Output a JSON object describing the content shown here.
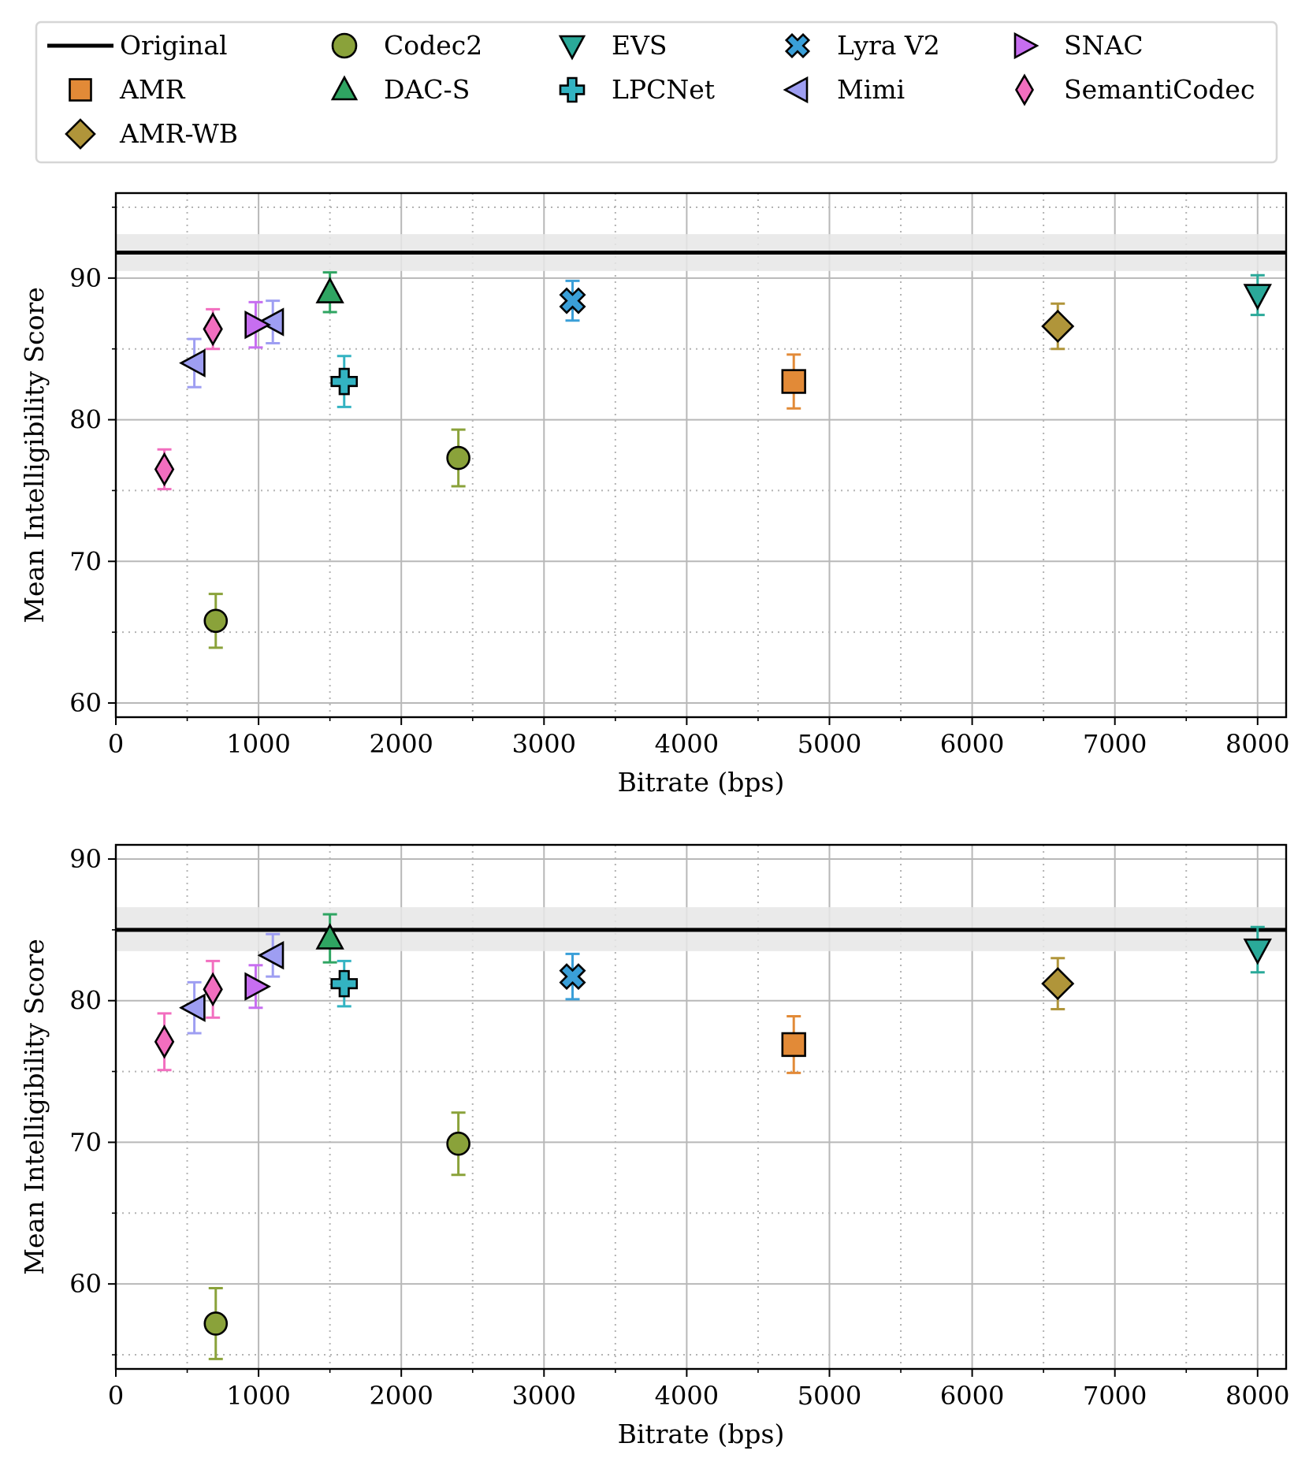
{
  "legend": {
    "entries": [
      {
        "label": "Original",
        "marker": "line",
        "color": "#000000"
      },
      {
        "label": "Codec2",
        "marker": "circle",
        "color": "#8aa23a"
      },
      {
        "label": "EVS",
        "marker": "triangle-down",
        "color": "#2aa999"
      },
      {
        "label": "Lyra V2",
        "marker": "x",
        "color": "#3a9fd8"
      },
      {
        "label": "SNAC",
        "marker": "triangle-right",
        "color": "#c76ef0"
      },
      {
        "label": "AMR",
        "marker": "square",
        "color": "#e28a37"
      },
      {
        "label": "DAC-S",
        "marker": "triangle-up",
        "color": "#2fa562"
      },
      {
        "label": "LPCNet",
        "marker": "plus",
        "color": "#33b3c2"
      },
      {
        "label": "Mimi",
        "marker": "triangle-left",
        "color": "#9e9ef2"
      },
      {
        "label": "SemantiCodec",
        "marker": "thin-diamond",
        "color": "#f26ebf"
      },
      {
        "label": "AMR-WB",
        "marker": "diamond",
        "color": "#b0953a"
      }
    ]
  },
  "chart_data": [
    {
      "type": "scatter",
      "title": "",
      "xlabel": "Bitrate (bps)",
      "ylabel": "Mean Intelligibility Score",
      "xlim": [
        0,
        8200
      ],
      "ylim": [
        59,
        96
      ],
      "xticks": [
        0,
        1000,
        2000,
        3000,
        4000,
        5000,
        6000,
        7000,
        8000
      ],
      "yticks": [
        60,
        70,
        80,
        90
      ],
      "grid": true,
      "reference": {
        "name": "Original",
        "value": 91.8,
        "band": [
          90.5,
          93.1
        ]
      },
      "series": [
        {
          "name": "SemantiCodec",
          "points": [
            {
              "x": 340,
              "y": 76.5,
              "err": 1.4
            },
            {
              "x": 680,
              "y": 86.4,
              "err": 1.4
            }
          ]
        },
        {
          "name": "Codec2",
          "points": [
            {
              "x": 700,
              "y": 65.8,
              "err": 1.9
            },
            {
              "x": 2400,
              "y": 77.3,
              "err": 2.0
            }
          ]
        },
        {
          "name": "Mimi",
          "points": [
            {
              "x": 550,
              "y": 84.0,
              "err": 1.7
            },
            {
              "x": 1100,
              "y": 86.9,
              "err": 1.5
            }
          ]
        },
        {
          "name": "SNAC",
          "points": [
            {
              "x": 980,
              "y": 86.7,
              "err": 1.6
            }
          ]
        },
        {
          "name": "DAC-S",
          "points": [
            {
              "x": 1500,
              "y": 89.0,
              "err": 1.4
            }
          ]
        },
        {
          "name": "LPCNet",
          "points": [
            {
              "x": 1600,
              "y": 82.7,
              "err": 1.8
            }
          ]
        },
        {
          "name": "Lyra V2",
          "points": [
            {
              "x": 3200,
              "y": 88.4,
              "err": 1.4
            }
          ]
        },
        {
          "name": "AMR",
          "points": [
            {
              "x": 4750,
              "y": 82.7,
              "err": 1.9
            }
          ]
        },
        {
          "name": "AMR-WB",
          "points": [
            {
              "x": 6600,
              "y": 86.6,
              "err": 1.6
            }
          ]
        },
        {
          "name": "EVS",
          "points": [
            {
              "x": 8000,
              "y": 88.8,
              "err": 1.4
            }
          ]
        }
      ]
    },
    {
      "type": "scatter",
      "title": "",
      "xlabel": "Bitrate (bps)",
      "ylabel": "Mean Intelligibility Score",
      "xlim": [
        0,
        8200
      ],
      "ylim": [
        54,
        91
      ],
      "xticks": [
        0,
        1000,
        2000,
        3000,
        4000,
        5000,
        6000,
        7000,
        8000
      ],
      "yticks": [
        60,
        70,
        80,
        90
      ],
      "grid": true,
      "reference": {
        "name": "Original",
        "value": 85.0,
        "band": [
          83.5,
          86.6
        ]
      },
      "series": [
        {
          "name": "SemantiCodec",
          "points": [
            {
              "x": 340,
              "y": 77.1,
              "err": 2.0
            },
            {
              "x": 680,
              "y": 80.8,
              "err": 2.0
            }
          ]
        },
        {
          "name": "Codec2",
          "points": [
            {
              "x": 700,
              "y": 57.2,
              "err": 2.5
            },
            {
              "x": 2400,
              "y": 69.9,
              "err": 2.2
            }
          ]
        },
        {
          "name": "Mimi",
          "points": [
            {
              "x": 550,
              "y": 79.5,
              "err": 1.8
            },
            {
              "x": 1100,
              "y": 83.2,
              "err": 1.5
            }
          ]
        },
        {
          "name": "SNAC",
          "points": [
            {
              "x": 980,
              "y": 81.0,
              "err": 1.5
            }
          ]
        },
        {
          "name": "DAC-S",
          "points": [
            {
              "x": 1500,
              "y": 84.4,
              "err": 1.7
            }
          ]
        },
        {
          "name": "LPCNet",
          "points": [
            {
              "x": 1600,
              "y": 81.2,
              "err": 1.6
            }
          ]
        },
        {
          "name": "Lyra V2",
          "points": [
            {
              "x": 3200,
              "y": 81.7,
              "err": 1.6
            }
          ]
        },
        {
          "name": "AMR",
          "points": [
            {
              "x": 4750,
              "y": 76.9,
              "err": 2.0
            }
          ]
        },
        {
          "name": "AMR-WB",
          "points": [
            {
              "x": 6600,
              "y": 81.2,
              "err": 1.8
            }
          ]
        },
        {
          "name": "EVS",
          "points": [
            {
              "x": 8000,
              "y": 83.6,
              "err": 1.6
            }
          ]
        }
      ]
    }
  ]
}
